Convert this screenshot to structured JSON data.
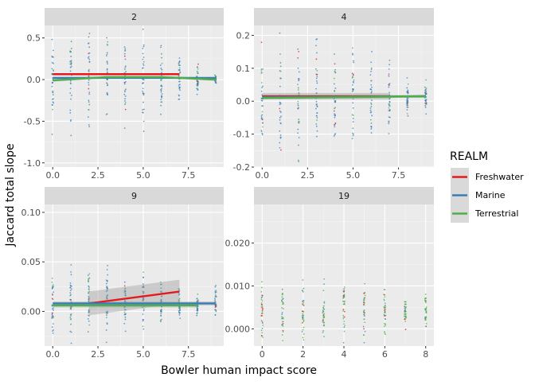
{
  "chart_data": {
    "type": "scatter",
    "xlabel": "Bowler human impact score",
    "ylabel": "Jaccard total slope",
    "legend": {
      "title": "REALM",
      "placement": "right",
      "entries": [
        {
          "name": "Freshwater",
          "color": "#e41a1c"
        },
        {
          "name": "Marine",
          "color": "#377eb8"
        },
        {
          "name": "Terrestrial",
          "color": "#4daf4a"
        }
      ]
    },
    "grid": true,
    "facets": [
      {
        "strip": "2",
        "xlim": [
          -0.45,
          9.45
        ],
        "ylim": [
          -1.05,
          0.65
        ],
        "xticks": [
          0,
          2.5,
          5,
          7.5
        ],
        "xtick_labels": [
          "0.0",
          "2.5",
          "5.0",
          "7.5"
        ],
        "yticks": [
          -1,
          -0.5,
          0,
          0.5
        ],
        "ytick_labels": [
          "-1.0",
          "-0.5",
          "0.0",
          "0.5"
        ],
        "x_values": [
          0,
          1,
          2,
          3,
          4,
          5,
          6,
          7,
          8,
          9
        ],
        "dots": {
          "center": 0.0,
          "spread": [
            0.45,
            0.5,
            0.55,
            0.45,
            0.5,
            0.45,
            0.35,
            0.3,
            0.2,
            0.05
          ],
          "seed": 11
        },
        "trends": [
          {
            "series": "Freshwater",
            "x": [
              0,
              7
            ],
            "y": [
              0.065,
              0.065
            ],
            "band": 0.01
          },
          {
            "series": "Marine",
            "x": [
              0,
              9
            ],
            "y": [
              0.02,
              0.02
            ],
            "band": 0.008
          },
          {
            "series": "Terrestrial",
            "x": [
              0,
              3,
              6,
              9
            ],
            "y": [
              -0.01,
              0.03,
              0.03,
              0.0
            ],
            "band": 0.015
          }
        ]
      },
      {
        "strip": "4",
        "xlim": [
          -0.45,
          9.45
        ],
        "ylim": [
          -0.2,
          0.23
        ],
        "xticks": [
          0,
          2.5,
          5,
          7.5
        ],
        "xtick_labels": [
          "0.0",
          "2.5",
          "5.0",
          "7.5"
        ],
        "yticks": [
          -0.2,
          -0.1,
          0,
          0.1,
          0.2
        ],
        "ytick_labels": [
          "-0.2",
          "-0.1",
          "0.0",
          "0.1",
          "0.2"
        ],
        "x_values": [
          0,
          1,
          2,
          3,
          4,
          5,
          6,
          7,
          8,
          9
        ],
        "dots": {
          "center": 0.01,
          "spread": [
            0.15,
            0.17,
            0.16,
            0.15,
            0.13,
            0.13,
            0.12,
            0.1,
            0.05,
            0.04
          ],
          "seed": 23
        },
        "trends": [
          {
            "series": "Freshwater",
            "x": [
              0,
              7
            ],
            "y": [
              0.015,
              0.015
            ],
            "band": 0.01
          },
          {
            "series": "Marine",
            "x": [
              0,
              9
            ],
            "y": [
              0.012,
              0.015
            ],
            "band": 0.004
          },
          {
            "series": "Terrestrial",
            "x": [
              0,
              9
            ],
            "y": [
              0.01,
              0.015
            ],
            "band": 0.004
          }
        ]
      },
      {
        "strip": "9",
        "xlim": [
          -0.45,
          9.45
        ],
        "ylim": [
          -0.035,
          0.108
        ],
        "xticks": [
          0,
          2.5,
          5,
          7.5
        ],
        "xtick_labels": [
          "0.0",
          "2.5",
          "5.0",
          "7.5"
        ],
        "yticks": [
          0,
          0.05,
          0.1
        ],
        "ytick_labels": [
          "0.00",
          "0.05",
          "0.10"
        ],
        "x_values": [
          0,
          1,
          2,
          3,
          4,
          5,
          6,
          7,
          8,
          9
        ],
        "dots": {
          "center": 0.008,
          "spread": [
            0.03,
            0.035,
            0.03,
            0.03,
            0.025,
            0.025,
            0.02,
            0.02,
            0.01,
            0.015
          ],
          "seed": 37
        },
        "trends": [
          {
            "series": "Freshwater",
            "x": [
              2,
              7
            ],
            "y": [
              0.008,
              0.02
            ],
            "band": 0.012
          },
          {
            "series": "Marine",
            "x": [
              0,
              9
            ],
            "y": [
              0.008,
              0.008
            ],
            "band": 0.002
          },
          {
            "series": "Terrestrial",
            "x": [
              0,
              8
            ],
            "y": [
              0.006,
              0.006
            ],
            "band": 0.002
          }
        ]
      },
      {
        "strip": "19",
        "xlim": [
          -0.4,
          8.4
        ],
        "ylim": [
          -0.004,
          0.029
        ],
        "xticks": [
          0,
          2,
          4,
          6,
          8
        ],
        "xtick_labels": [
          "0",
          "2",
          "4",
          "6",
          "8"
        ],
        "yticks": [
          0,
          0.01,
          0.02
        ],
        "ytick_labels": [
          "0.000",
          "0.010",
          "0.020"
        ],
        "x_values": [
          0,
          1,
          2,
          3,
          4,
          5,
          6,
          7,
          8
        ],
        "dots": {
          "center": 0.004,
          "spread": [
            0.006,
            0.006,
            0.006,
            0.006,
            0.006,
            0.006,
            0.005,
            0.003,
            0.004
          ],
          "seed": 51
        },
        "trends": []
      }
    ]
  }
}
